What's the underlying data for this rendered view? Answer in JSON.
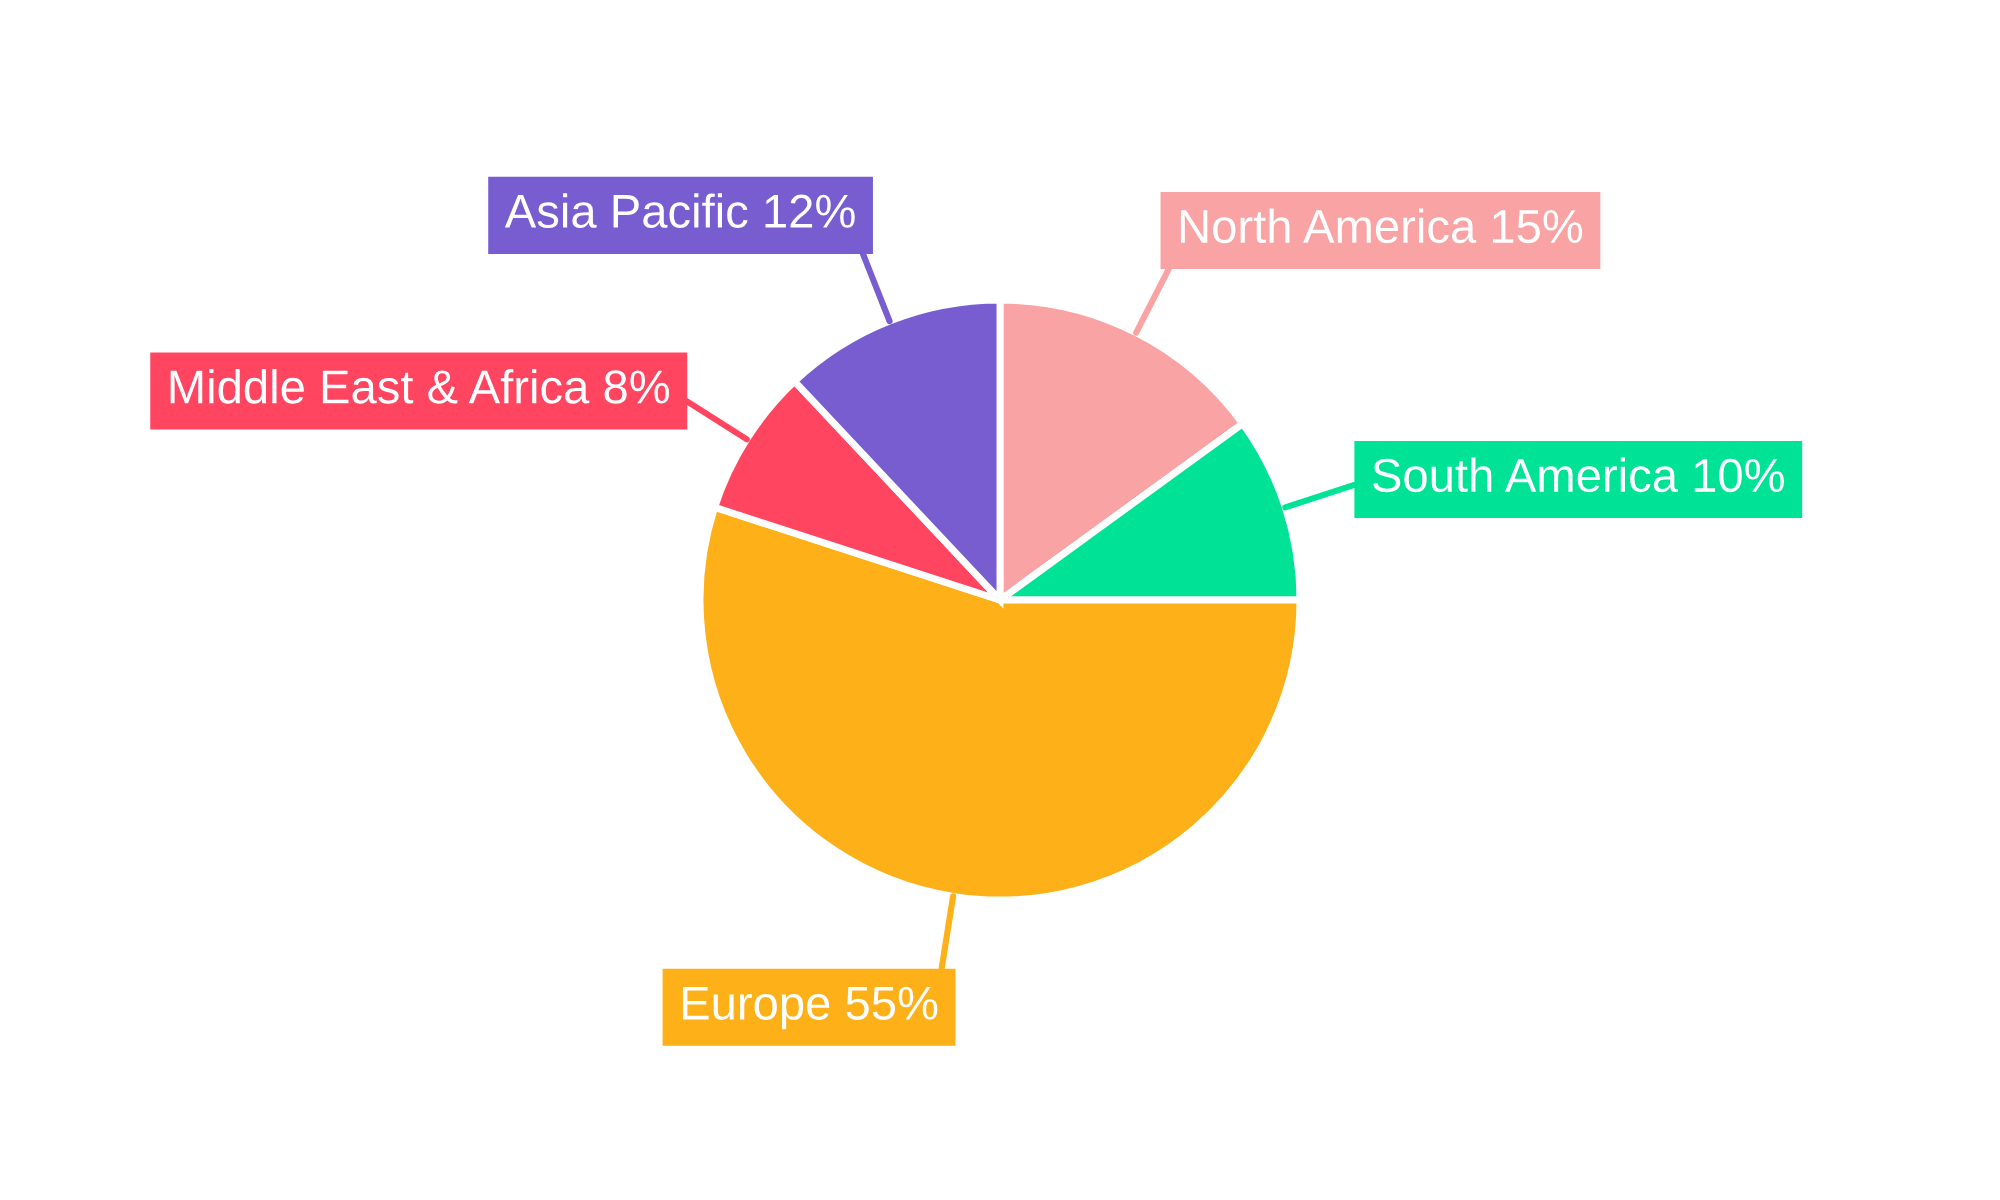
{
  "chart_data": {
    "type": "pie",
    "categories": [
      "North America",
      "South America",
      "Europe",
      "Middle East & Africa",
      "Asia Pacific"
    ],
    "values": [
      15,
      10,
      55,
      8,
      12
    ],
    "value_labels": [
      "15%",
      "10%",
      "55%",
      "8%",
      "12%"
    ],
    "colors": [
      "#f9a3a4",
      "#00e396",
      "#feb019",
      "#ff4560",
      "#775dd0"
    ]
  }
}
